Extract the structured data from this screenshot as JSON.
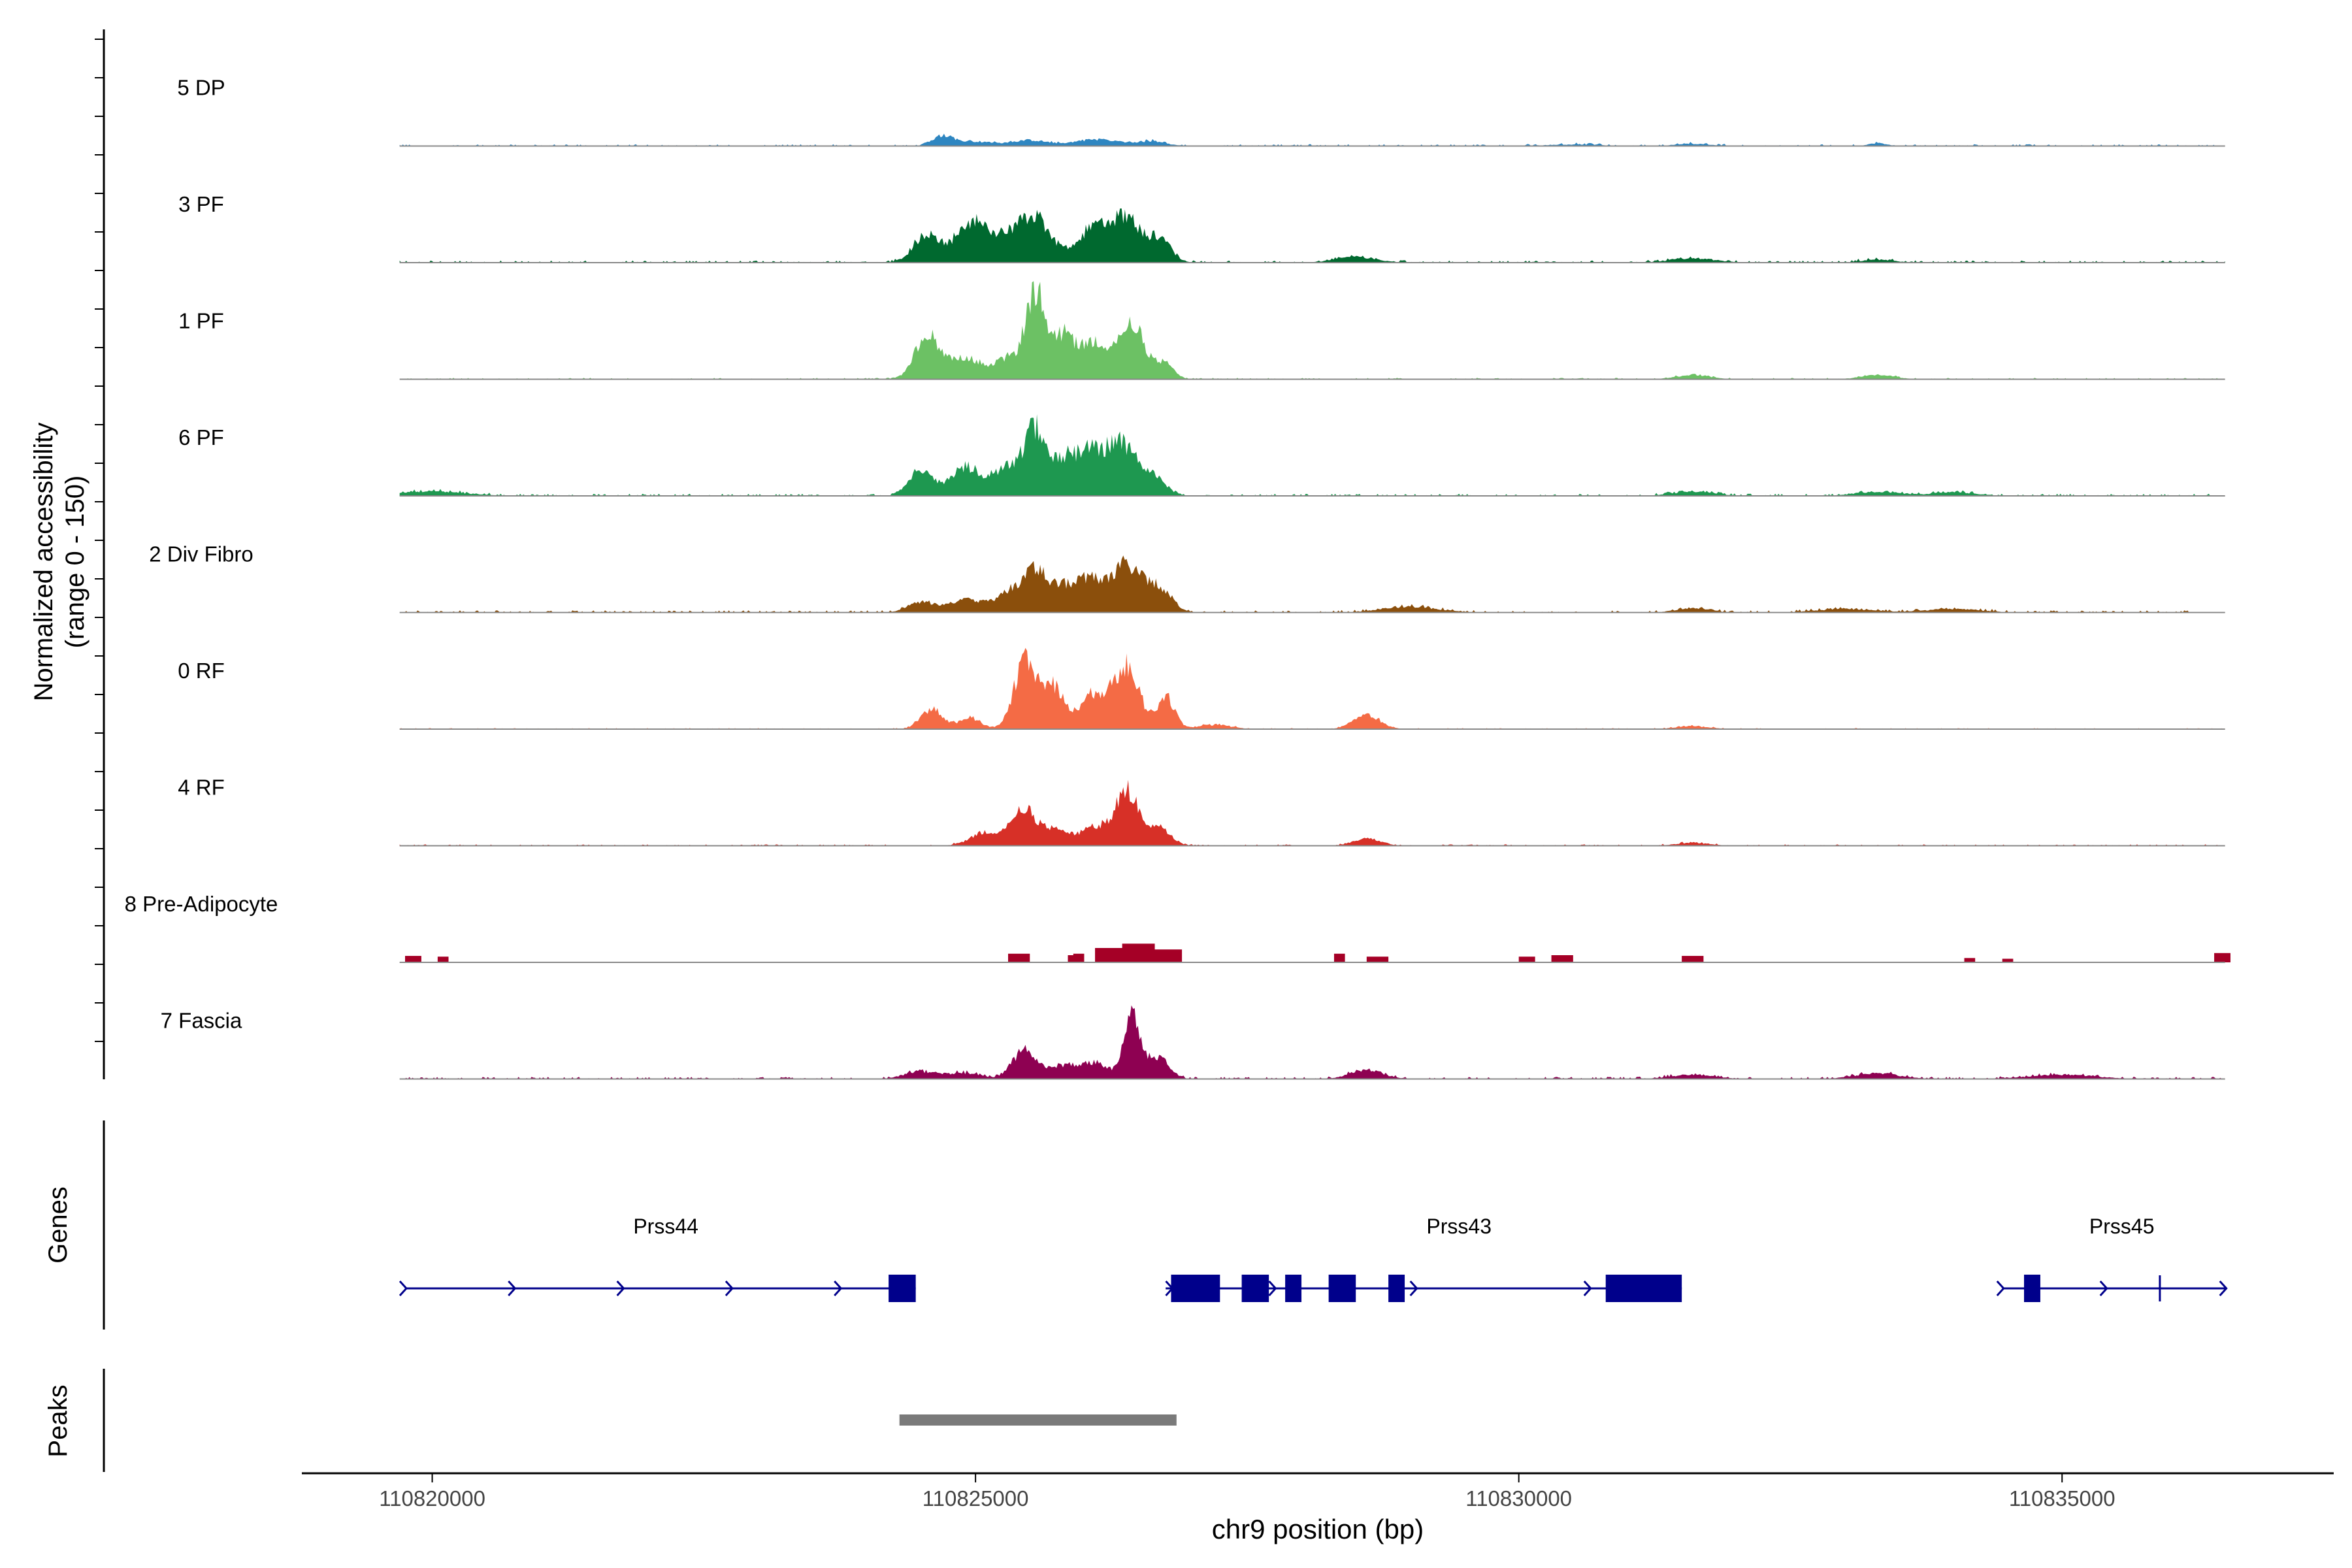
{
  "chart_data": {
    "type": "area",
    "title": "",
    "y_axis_label_line1": "Normalized accessibility",
    "y_axis_label_line2": "(range 0 - 150)",
    "x_axis_label": "chr9 position (bp)",
    "x_range": [
      110818800,
      110837500
    ],
    "y_range": [
      0,
      150
    ],
    "x_ticks": [
      {
        "value": 110820000,
        "label": "110820000"
      },
      {
        "value": 110825000,
        "label": "110825000"
      },
      {
        "value": 110830000,
        "label": "110830000"
      },
      {
        "value": 110835000,
        "label": "110835000"
      }
    ],
    "tracks": [
      {
        "name": "5 DP",
        "color": "#2E86C1",
        "style": "smooth",
        "peaks": [
          [
            110824700,
            14,
            90
          ],
          [
            110825000,
            6,
            180
          ],
          [
            110825500,
            8,
            160
          ],
          [
            110826100,
            9,
            200
          ],
          [
            110826600,
            6,
            150
          ],
          [
            110830500,
            2,
            250
          ],
          [
            110831600,
            3,
            150
          ],
          [
            110833300,
            4,
            80
          ]
        ],
        "noise": 2.5,
        "start": 110819700,
        "end": 110836500
      },
      {
        "name": "3 PF",
        "color": "#00692F",
        "style": "smooth",
        "peaks": [
          [
            110824550,
            38,
            120
          ],
          [
            110824950,
            50,
            140
          ],
          [
            110825550,
            60,
            150
          ],
          [
            110825250,
            30,
            150
          ],
          [
            110826100,
            48,
            150
          ],
          [
            110826400,
            55,
            140
          ],
          [
            110826700,
            30,
            100
          ],
          [
            110828500,
            8,
            180
          ],
          [
            110831600,
            6,
            200
          ],
          [
            110833300,
            4,
            150
          ]
        ],
        "noise": 3,
        "start": 110819700,
        "end": 110836500
      },
      {
        "name": "1 PF",
        "color": "#6CC164",
        "style": "smooth",
        "peaks": [
          [
            110824550,
            60,
            110
          ],
          [
            110824900,
            30,
            160
          ],
          [
            110825300,
            28,
            110
          ],
          [
            110825550,
            120,
            90
          ],
          [
            110825800,
            55,
            100
          ],
          [
            110826100,
            50,
            150
          ],
          [
            110826450,
            70,
            120
          ],
          [
            110826750,
            20,
            80
          ],
          [
            110831600,
            6,
            150
          ],
          [
            110833300,
            6,
            150
          ]
        ],
        "noise": 2,
        "start": 110819700,
        "end": 110836500
      },
      {
        "name": "6 PF",
        "color": "#1E9850",
        "style": "smooth",
        "peaks": [
          [
            110824500,
            38,
            100
          ],
          [
            110824900,
            40,
            140
          ],
          [
            110825300,
            40,
            140
          ],
          [
            110825550,
            85,
            90
          ],
          [
            110825800,
            45,
            110
          ],
          [
            110826050,
            55,
            130
          ],
          [
            110826350,
            70,
            140
          ],
          [
            110826650,
            22,
            110
          ],
          [
            110820000,
            6,
            300
          ],
          [
            110831600,
            6,
            180
          ],
          [
            110833300,
            6,
            200
          ],
          [
            110834000,
            5,
            200
          ]
        ],
        "noise": 3,
        "start": 110819700,
        "end": 110836500
      },
      {
        "name": "2 Div Fibro",
        "color": "#8B4F0C",
        "style": "smooth",
        "peaks": [
          [
            110824500,
            15,
            120
          ],
          [
            110824900,
            18,
            140
          ],
          [
            110825300,
            25,
            140
          ],
          [
            110825550,
            55,
            110
          ],
          [
            110825800,
            30,
            120
          ],
          [
            110826050,
            40,
            130
          ],
          [
            110826400,
            65,
            150
          ],
          [
            110826700,
            28,
            110
          ],
          [
            110829000,
            8,
            250
          ],
          [
            110831600,
            6,
            150
          ],
          [
            110833000,
            5,
            250
          ],
          [
            110834000,
            5,
            250
          ]
        ],
        "noise": 3,
        "start": 110819700,
        "end": 110836500
      },
      {
        "name": "0 RF",
        "color": "#F46B45",
        "style": "smooth",
        "peaks": [
          [
            110824600,
            28,
            100
          ],
          [
            110824950,
            15,
            100
          ],
          [
            110825450,
            90,
            100
          ],
          [
            110825700,
            60,
            110
          ],
          [
            110826100,
            50,
            130
          ],
          [
            110826400,
            85,
            110
          ],
          [
            110826750,
            45,
            80
          ],
          [
            110827200,
            6,
            150
          ],
          [
            110828600,
            20,
            120
          ],
          [
            110831600,
            4,
            150
          ]
        ],
        "noise": 1.5,
        "start": 110819700,
        "end": 110836500
      },
      {
        "name": "4 RF",
        "color": "#D73027",
        "style": "smooth",
        "peaks": [
          [
            110825100,
            18,
            140
          ],
          [
            110825450,
            48,
            120
          ],
          [
            110825750,
            20,
            120
          ],
          [
            110826100,
            25,
            130
          ],
          [
            110826400,
            75,
            110
          ],
          [
            110826700,
            25,
            100
          ],
          [
            110828600,
            10,
            120
          ],
          [
            110831600,
            4,
            150
          ]
        ],
        "noise": 2,
        "start": 110819700,
        "end": 110836500
      },
      {
        "name": "8 Pre-Adipocyte",
        "color": "#A50026",
        "style": "blocky",
        "blocks": [
          [
            110819750,
            110819900,
            9
          ],
          [
            110820050,
            110820150,
            8
          ],
          [
            110825300,
            110825500,
            12
          ],
          [
            110825850,
            110825950,
            10
          ],
          [
            110825900,
            110826000,
            12
          ],
          [
            110826100,
            110826350,
            20
          ],
          [
            110826350,
            110826650,
            26
          ],
          [
            110826650,
            110826900,
            18
          ],
          [
            110828300,
            110828400,
            12
          ],
          [
            110828600,
            110828800,
            8
          ],
          [
            110830000,
            110830150,
            8
          ],
          [
            110830300,
            110830500,
            10
          ],
          [
            110831500,
            110831700,
            9
          ],
          [
            110834100,
            110834200,
            6
          ],
          [
            110834450,
            110834550,
            5
          ],
          [
            110836400,
            110836550,
            13
          ]
        ],
        "start": 110819700,
        "end": 110836500
      },
      {
        "name": "7 Fascia",
        "color": "#8E0152",
        "style": "smooth",
        "peaks": [
          [
            110824500,
            10,
            150
          ],
          [
            110824900,
            8,
            150
          ],
          [
            110825450,
            40,
            110
          ],
          [
            110825800,
            18,
            120
          ],
          [
            110826100,
            22,
            130
          ],
          [
            110826450,
            85,
            80
          ],
          [
            110826700,
            30,
            90
          ],
          [
            110828600,
            12,
            150
          ],
          [
            110831600,
            6,
            200
          ],
          [
            110833300,
            8,
            200
          ],
          [
            110835000,
            6,
            300
          ]
        ],
        "noise": 3,
        "start": 110819700,
        "end": 110836500
      }
    ],
    "genes_label": "Genes",
    "gene_color": "#00008B",
    "genes": [
      {
        "name": "Prss44",
        "label_x": 110822150,
        "line": [
          110819750,
          110824450
        ],
        "exons": [
          [
            110824200,
            110824450
          ]
        ],
        "arrows": [
          110819750,
          110820750,
          110821750,
          110822750,
          110823750
        ],
        "ticks": []
      },
      {
        "name": "Prss43",
        "label_x": 110829450,
        "line": [
          110826750,
          110831500
        ],
        "exons": [
          [
            110826800,
            110827250
          ],
          [
            110827450,
            110827700
          ],
          [
            110827850,
            110828000
          ],
          [
            110828250,
            110828500
          ],
          [
            110828800,
            110828950
          ],
          [
            110830800,
            110831500
          ]
        ],
        "arrows": [
          110826800,
          110827750,
          110829050,
          110830650
        ],
        "ticks": []
      },
      {
        "name": "Prss45",
        "label_x": 110835550,
        "line": [
          110834450,
          110836500
        ],
        "exons": [
          [
            110834650,
            110834800
          ]
        ],
        "arrows": [
          110834450,
          110835400,
          110836500
        ],
        "ticks": [
          110835900
        ]
      }
    ],
    "peaks_label": "Peaks",
    "peak_color": "#7A7A7A",
    "peak_regions": [
      [
        110824300,
        110826850
      ]
    ]
  }
}
